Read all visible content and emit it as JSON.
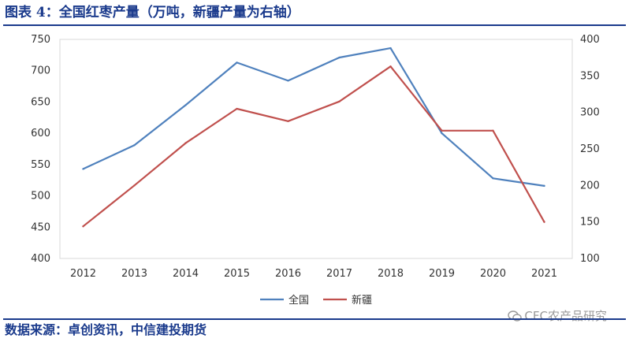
{
  "title": "图表 4：全国红枣产量（万吨，新疆产量为右轴）",
  "source": "数据来源：卓创资讯，中信建投期货",
  "watermark": "CFC农产品研究",
  "colors": {
    "national": "#4f81bd",
    "xinjiang": "#c0504d",
    "brand": "#1a3a8c"
  },
  "chart_data": {
    "type": "line",
    "title": "",
    "categories": [
      "2012",
      "2013",
      "2014",
      "2015",
      "2016",
      "2017",
      "2018",
      "2019",
      "2020",
      "2021"
    ],
    "legend": "bottom-center",
    "grid": false,
    "y_left": {
      "min": 400,
      "max": 750,
      "step": 50,
      "ticks": [
        "750",
        "700",
        "650",
        "600",
        "550",
        "500",
        "450",
        "400"
      ]
    },
    "y_right": {
      "min": 100,
      "max": 400,
      "step": 50,
      "ticks": [
        "400",
        "350",
        "300",
        "250",
        "200",
        "150",
        "100"
      ]
    },
    "series": [
      {
        "name": "全国",
        "axis": "left",
        "color": "#4f81bd",
        "values": [
          543,
          581,
          645,
          713,
          684,
          721,
          736,
          600,
          528,
          516
        ]
      },
      {
        "name": "新疆",
        "axis": "right",
        "color": "#c0504d",
        "values": [
          144,
          200,
          258,
          305,
          288,
          315,
          363,
          275,
          275,
          150
        ]
      }
    ]
  }
}
